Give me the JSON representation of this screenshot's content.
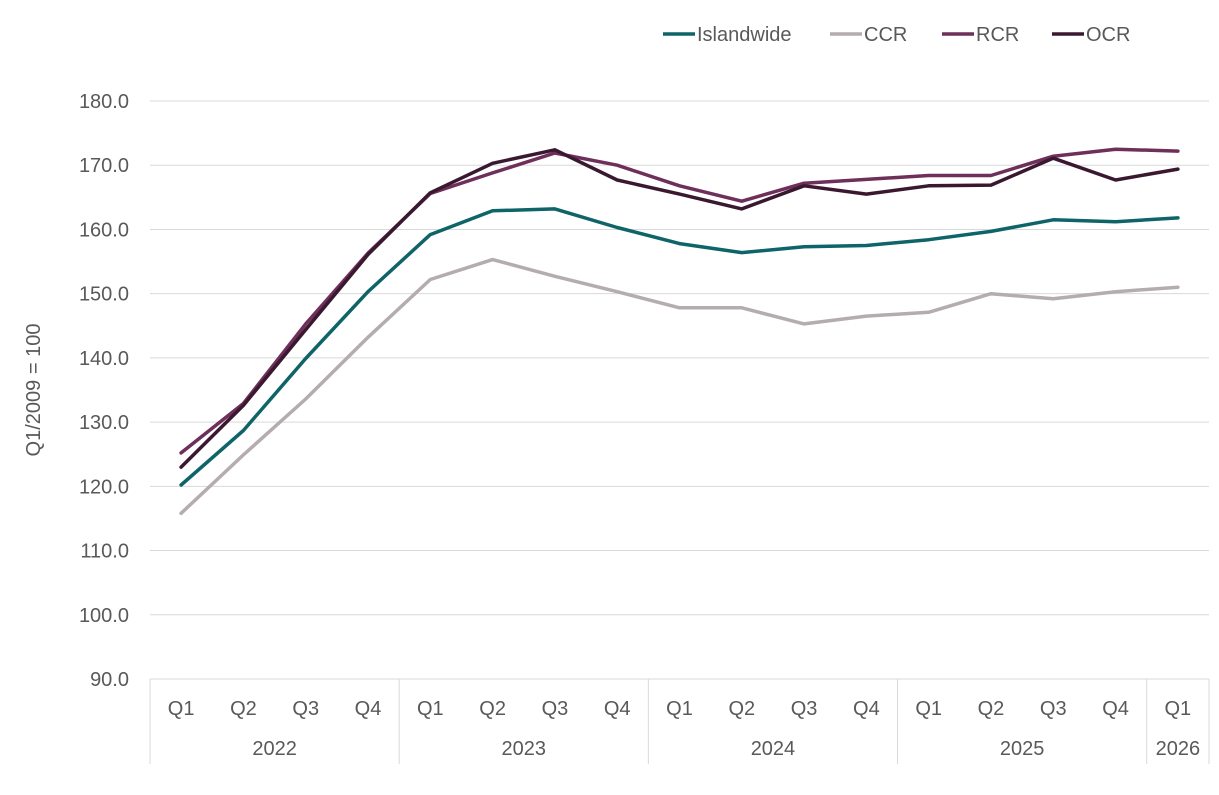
{
  "chart_data": {
    "type": "line",
    "ylabel": "Q1/2009 = 100",
    "ylim": [
      90,
      180
    ],
    "y_ticks": [
      "90.0",
      "100.0",
      "110.0",
      "120.0",
      "130.0",
      "140.0",
      "150.0",
      "160.0",
      "170.0",
      "180.0"
    ],
    "grid": true,
    "legend_position": "top-right",
    "categories": [
      "Q1",
      "Q2",
      "Q3",
      "Q4",
      "Q1",
      "Q2",
      "Q3",
      "Q4",
      "Q1",
      "Q2",
      "Q3",
      "Q4",
      "Q1",
      "Q2",
      "Q3",
      "Q4",
      "Q1"
    ],
    "year_groups": [
      {
        "label": "2022",
        "count": 4
      },
      {
        "label": "2023",
        "count": 4
      },
      {
        "label": "2024",
        "count": 4
      },
      {
        "label": "2025",
        "count": 4
      },
      {
        "label": "2026",
        "count": 1
      }
    ],
    "series": [
      {
        "name": "Islandwide",
        "color": "#0e6468",
        "values": [
          120.2,
          128.7,
          139.9,
          150.3,
          159.2,
          162.9,
          163.2,
          160.3,
          157.8,
          156.4,
          157.3,
          157.5,
          158.4,
          159.7,
          161.5,
          161.2,
          161.8
        ]
      },
      {
        "name": "CCR",
        "color": "#b4acb1",
        "values": [
          115.8,
          124.9,
          133.6,
          143.2,
          152.2,
          155.3,
          152.7,
          150.3,
          147.8,
          147.8,
          145.3,
          146.5,
          147.1,
          150.0,
          149.2,
          150.3,
          151.0
        ]
      },
      {
        "name": "RCR",
        "color": "#6e2f5a",
        "values": [
          125.2,
          132.9,
          145.3,
          156.3,
          165.6,
          168.8,
          171.9,
          170.0,
          166.8,
          164.4,
          167.2,
          167.8,
          168.4,
          168.4,
          171.4,
          172.5,
          172.2
        ]
      },
      {
        "name": "OCR",
        "color": "#3a1930",
        "values": [
          123.0,
          132.6,
          144.4,
          156.1,
          165.7,
          170.3,
          172.4,
          167.7,
          165.5,
          163.2,
          166.8,
          165.5,
          166.8,
          166.9,
          171.1,
          167.7,
          169.4
        ]
      }
    ]
  }
}
